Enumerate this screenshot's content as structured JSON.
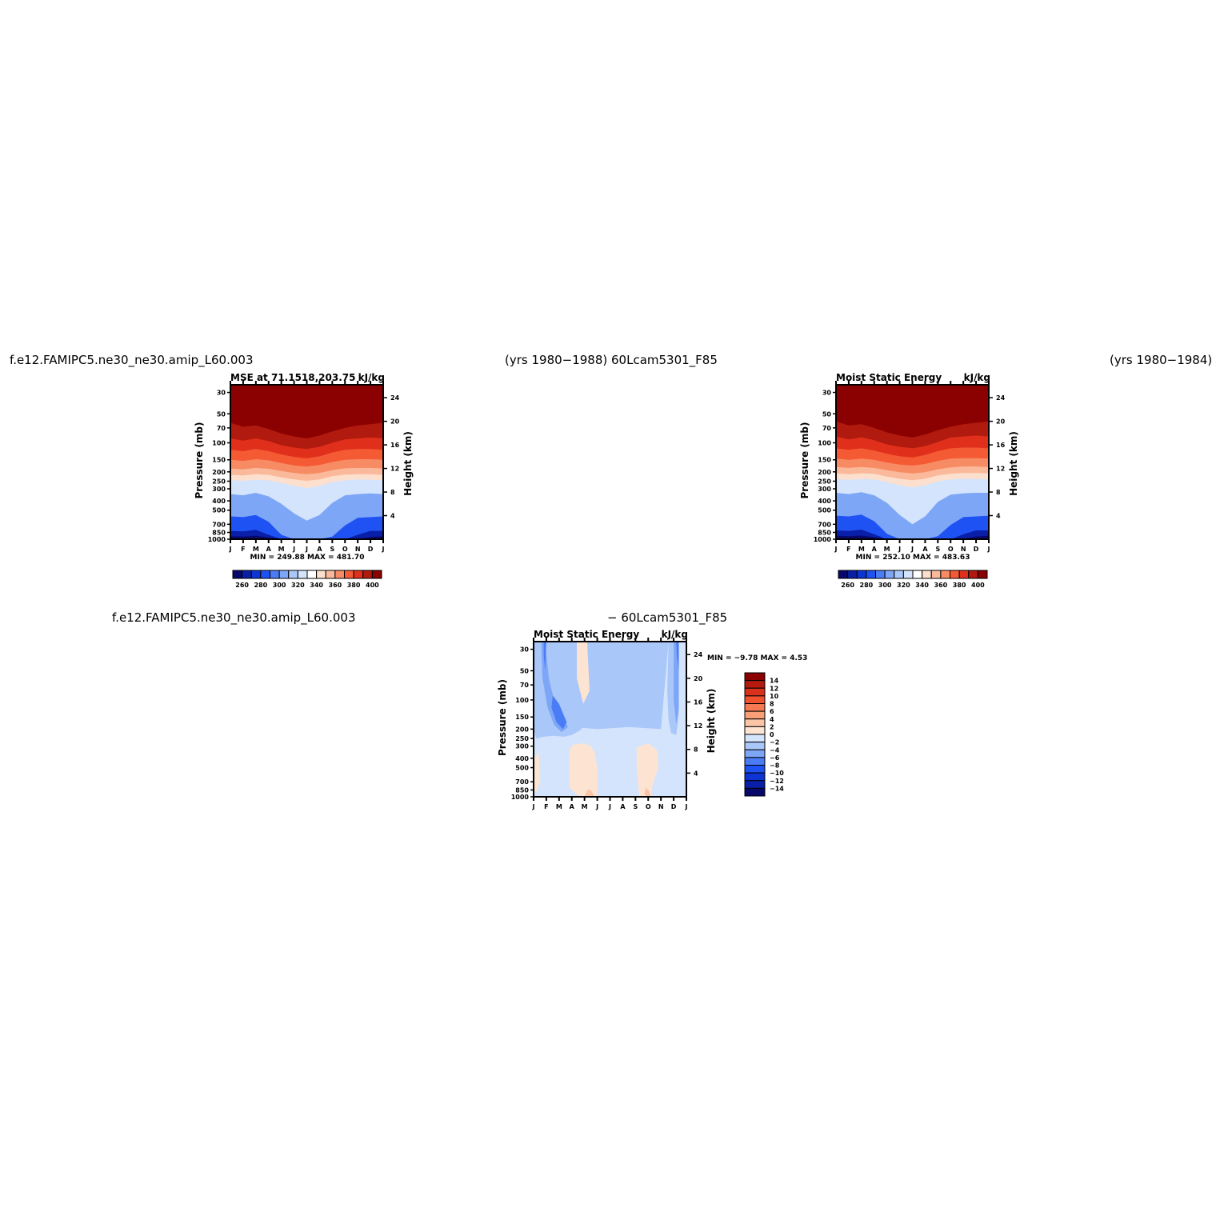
{
  "header": {
    "top_left": "f.e12.FAMIPC5.ne30_ne30.amip_L60.003",
    "top_center": "(yrs 1980−1988)  60Lcam5301_F85",
    "top_right": "(yrs 1980−1984)",
    "bottom_left": "f.e12.FAMIPC5.ne30_ne30.amip_L60.003",
    "bottom_center": "− 60Lcam5301_F85"
  },
  "colors": {
    "mse_levels": [
      "#08086b",
      "#0a1fa8",
      "#0c35d3",
      "#1f52f2",
      "#4a7cf5",
      "#7ea6f7",
      "#a9c7f9",
      "#d3e4fc",
      "#ffffff",
      "#fddfcd",
      "#fbb99b",
      "#f78b63",
      "#f45a34",
      "#e0301b",
      "#b11a0e",
      "#8b0000"
    ],
    "diff_levels": [
      "#08086b",
      "#0a1fa8",
      "#0c35d3",
      "#1f52f2",
      "#4a7cf5",
      "#7ea6f7",
      "#a9c7f9",
      "#d3e4fc",
      "#fde4d2",
      "#fbc4a6",
      "#f89f78",
      "#f57a51",
      "#f0512f",
      "#d8321c",
      "#b31b0e",
      "#8b0000"
    ]
  },
  "chart_data": [
    {
      "type": "heatmap",
      "title": "MSE at 71.1518,203.75",
      "units": "kJ/kg",
      "ylabel": "Pressure (mb)",
      "ylabel_right": "Height (km)",
      "x": [
        "J",
        "F",
        "M",
        "A",
        "M",
        "J",
        "J",
        "A",
        "S",
        "O",
        "N",
        "D",
        "J"
      ],
      "pressure_ticks": [
        30,
        50,
        70,
        100,
        150,
        200,
        250,
        300,
        400,
        500,
        700,
        850,
        1000
      ],
      "height_ticks": [
        4,
        8,
        12,
        16,
        20,
        24
      ],
      "ylim": [
        1000,
        25
      ],
      "minmax": "MIN =  249.88  MAX =  481.70",
      "colorbar_labels": [
        "260",
        "280",
        "300",
        "320",
        "340",
        "360",
        "380",
        "400"
      ],
      "contour_levels": [
        250,
        260,
        270,
        280,
        290,
        300,
        310,
        320,
        330,
        340,
        350,
        360,
        370,
        380,
        390,
        400
      ],
      "months": [
        1,
        2,
        3,
        4,
        5,
        6,
        7,
        8,
        9,
        10,
        11,
        12,
        13
      ],
      "profiles": [
        {
          "value": 260,
          "p": [
            930,
            940,
            920,
            960,
            1000,
            1000,
            1000,
            1000,
            1000,
            1000,
            990,
            950,
            930
          ]
        },
        {
          "value": 280,
          "p": [
            820,
            830,
            800,
            900,
            1000,
            1000,
            1000,
            1000,
            1000,
            1000,
            900,
            820,
            820
          ]
        },
        {
          "value": 300,
          "p": [
            580,
            590,
            560,
            660,
            900,
            1000,
            1000,
            1000,
            940,
            720,
            600,
            590,
            580
          ]
        },
        {
          "value": 320,
          "p": [
            340,
            350,
            330,
            360,
            430,
            540,
            640,
            560,
            420,
            350,
            340,
            335,
            340
          ]
        },
        {
          "value": 340,
          "p": [
            245,
            248,
            242,
            245,
            260,
            280,
            295,
            280,
            255,
            245,
            240,
            242,
            245
          ]
        },
        {
          "value": 350,
          "p": [
            215,
            218,
            212,
            215,
            228,
            240,
            248,
            240,
            222,
            214,
            212,
            212,
            215
          ]
        },
        {
          "value": 360,
          "p": [
            185,
            188,
            182,
            186,
            196,
            206,
            212,
            206,
            192,
            184,
            182,
            182,
            185
          ]
        },
        {
          "value": 370,
          "p": [
            150,
            154,
            148,
            152,
            162,
            172,
            176,
            170,
            158,
            150,
            148,
            148,
            150
          ]
        },
        {
          "value": 380,
          "p": [
            118,
            122,
            116,
            122,
            132,
            140,
            145,
            138,
            126,
            118,
            116,
            116,
            118
          ]
        },
        {
          "value": 390,
          "p": [
            90,
            95,
            90,
            96,
            106,
            112,
            116,
            110,
            100,
            92,
            90,
            88,
            90
          ]
        },
        {
          "value": 400,
          "p": [
            62,
            68,
            66,
            72,
            80,
            86,
            90,
            84,
            76,
            70,
            66,
            64,
            62
          ]
        },
        {
          "value": 420,
          "p": [
            48,
            54,
            56,
            62,
            68,
            74,
            76,
            72,
            66,
            60,
            56,
            52,
            48
          ]
        }
      ]
    },
    {
      "type": "heatmap",
      "title": "Moist Static Energy",
      "units": "kJ/kg",
      "ylabel": "Pressure (mb)",
      "ylabel_right": "Height (km)",
      "x": [
        "J",
        "F",
        "M",
        "A",
        "M",
        "J",
        "J",
        "A",
        "S",
        "O",
        "N",
        "D",
        "J"
      ],
      "pressure_ticks": [
        30,
        50,
        70,
        100,
        150,
        200,
        250,
        300,
        400,
        500,
        700,
        850,
        1000
      ],
      "height_ticks": [
        4,
        8,
        12,
        16,
        20,
        24
      ],
      "ylim": [
        1000,
        25
      ],
      "minmax": "MIN =  252.10  MAX =  483.63",
      "colorbar_labels": [
        "260",
        "280",
        "300",
        "320",
        "340",
        "360",
        "380",
        "400"
      ],
      "contour_levels": [
        250,
        260,
        270,
        280,
        290,
        300,
        310,
        320,
        330,
        340,
        350,
        360,
        370,
        380,
        390,
        400
      ],
      "months": [
        1,
        2,
        3,
        4,
        5,
        6,
        7,
        8,
        9,
        10,
        11,
        12,
        13
      ],
      "profiles": [
        {
          "value": 260,
          "p": [
            920,
            930,
            915,
            955,
            1000,
            1000,
            1000,
            1000,
            1000,
            1000,
            985,
            940,
            920
          ]
        },
        {
          "value": 280,
          "p": [
            810,
            820,
            795,
            890,
            1000,
            1000,
            1000,
            1000,
            1000,
            1000,
            890,
            810,
            810
          ]
        },
        {
          "value": 300,
          "p": [
            570,
            580,
            555,
            650,
            880,
            1000,
            1000,
            1000,
            930,
            710,
            590,
            580,
            570
          ]
        },
        {
          "value": 320,
          "p": [
            330,
            340,
            325,
            350,
            420,
            560,
            700,
            580,
            410,
            345,
            335,
            330,
            330
          ]
        },
        {
          "value": 340,
          "p": [
            238,
            242,
            238,
            240,
            255,
            275,
            290,
            275,
            250,
            240,
            236,
            238,
            238
          ]
        },
        {
          "value": 350,
          "p": [
            208,
            212,
            208,
            210,
            224,
            236,
            244,
            236,
            218,
            210,
            206,
            206,
            208
          ]
        },
        {
          "value": 360,
          "p": [
            178,
            182,
            178,
            182,
            192,
            202,
            208,
            202,
            188,
            180,
            176,
            176,
            178
          ]
        },
        {
          "value": 370,
          "p": [
            146,
            150,
            146,
            150,
            160,
            168,
            172,
            166,
            154,
            146,
            144,
            144,
            146
          ]
        },
        {
          "value": 380,
          "p": [
            114,
            118,
            114,
            120,
            130,
            138,
            142,
            134,
            122,
            114,
            112,
            112,
            114
          ]
        },
        {
          "value": 390,
          "p": [
            86,
            92,
            88,
            94,
            104,
            110,
            114,
            108,
            98,
            88,
            86,
            84,
            86
          ]
        },
        {
          "value": 400,
          "p": [
            60,
            66,
            64,
            70,
            78,
            84,
            88,
            82,
            74,
            68,
            64,
            62,
            60
          ]
        },
        {
          "value": 420,
          "p": [
            44,
            52,
            54,
            60,
            66,
            72,
            74,
            70,
            64,
            58,
            54,
            48,
            44
          ]
        }
      ]
    },
    {
      "type": "heatmap",
      "title": "Moist Static Energy",
      "units": "kJ/kg",
      "ylabel": "Pressure (mb)",
      "ylabel_right": "Height (km)",
      "x": [
        "J",
        "F",
        "M",
        "A",
        "M",
        "J",
        "J",
        "A",
        "S",
        "O",
        "N",
        "D",
        "J"
      ],
      "pressure_ticks": [
        30,
        50,
        70,
        100,
        150,
        200,
        250,
        300,
        400,
        500,
        700,
        850,
        1000
      ],
      "height_ticks": [
        4,
        8,
        12,
        16,
        20,
        24
      ],
      "ylim": [
        1000,
        25
      ],
      "minmax": "MIN =   −9.78  MAX =    4.53",
      "colorbar_labels": [
        "14",
        "12",
        "10",
        "8",
        "6",
        "4",
        "2",
        "0",
        "−2",
        "−4",
        "−6",
        "−8",
        "−10",
        "−12",
        "−14"
      ],
      "contour_levels": [
        -14,
        -12,
        -10,
        -8,
        -6,
        -4,
        -2,
        0,
        2,
        4,
        6,
        8,
        10,
        12,
        14
      ],
      "regions": [
        {
          "value": -1,
          "m": [
            1,
            1.6,
            1.8,
            2.4,
            4,
            6,
            8.5,
            11,
            11.6,
            13,
            13,
            1
          ],
          "p": [
            25,
            25,
            100,
            180,
            190,
            200,
            190,
            200,
            25,
            25,
            1000,
            1000
          ]
        },
        {
          "value": -3,
          "m": [
            1,
            1.5,
            2.2,
            2.8,
            3.4,
            4.2,
            4.8,
            4,
            3.4,
            2.6,
            1.8,
            1.2,
            1
          ],
          "p": [
            25,
            25,
            25,
            60,
            100,
            150,
            200,
            230,
            240,
            235,
            240,
            250,
            200
          ]
        },
        {
          "value": -3,
          "m": [
            5.3,
            5.8,
            6,
            6.2,
            6,
            5.5,
            5.3
          ],
          "p": [
            25,
            25,
            60,
            120,
            180,
            110,
            60
          ]
        },
        {
          "value": -3,
          "m": [
            11.6,
            12.4,
            12.4,
            12.2,
            11.8,
            11.6,
            11.5
          ],
          "p": [
            25,
            25,
            140,
            230,
            220,
            160,
            80
          ]
        },
        {
          "value": -5,
          "m": [
            1.6,
            1.9,
            2.2,
            2.6,
            3.3,
            3.7,
            3.2,
            2.6,
            2.1,
            1.7
          ],
          "p": [
            25,
            25,
            60,
            100,
            150,
            190,
            215,
            180,
            120,
            60
          ]
        },
        {
          "value": -5,
          "m": [
            12.0,
            12.4,
            12.4,
            12.2,
            12.0
          ],
          "p": [
            25,
            25,
            120,
            180,
            100
          ]
        },
        {
          "value": -7,
          "m": [
            2.5,
            3,
            3.6,
            3.3,
            2.8,
            2.4
          ],
          "p": [
            90,
            110,
            170,
            200,
            170,
            120
          ]
        },
        {
          "value": -7,
          "m": [
            1.8,
            2.0,
            1.9,
            1.8
          ],
          "p": [
            25,
            25,
            50,
            35
          ]
        },
        {
          "value": -7,
          "m": [
            12.2,
            12.4,
            12.4,
            12.25
          ],
          "p": [
            25,
            25,
            50,
            35
          ]
        },
        {
          "value": 1,
          "m": [
            3.8,
            4.1,
            4.9,
            5.5,
            5.8,
            6,
            6,
            5.5,
            4.6,
            3.8
          ],
          "p": [
            330,
            290,
            280,
            300,
            350,
            500,
            1000,
            1000,
            1000,
            800
          ]
        },
        {
          "value": 1,
          "m": [
            9.1,
            10,
            10.7,
            10.8,
            10.4,
            10.2,
            9.3,
            9.1
          ],
          "p": [
            310,
            280,
            330,
            500,
            700,
            1000,
            1000,
            500
          ]
        },
        {
          "value": 1,
          "m": [
            1.05,
            1.4,
            1.5,
            1.2,
            1.05
          ],
          "p": [
            400,
            350,
            700,
            900,
            850
          ]
        },
        {
          "value": 1,
          "m": [
            4.4,
            5.2,
            5.4,
            4.9,
            4.4
          ],
          "p": [
            25,
            25,
            80,
            110,
            60
          ]
        },
        {
          "value": 3,
          "m": [
            5.2,
            5.5,
            5.8,
            5.4,
            5.0
          ],
          "p": [
            850,
            850,
            1000,
            1000,
            1000
          ]
        },
        {
          "value": 3,
          "m": [
            9.8,
            10.1,
            10.2,
            9.9,
            9.7
          ],
          "p": [
            800,
            880,
            1000,
            1000,
            950
          ]
        }
      ]
    }
  ]
}
